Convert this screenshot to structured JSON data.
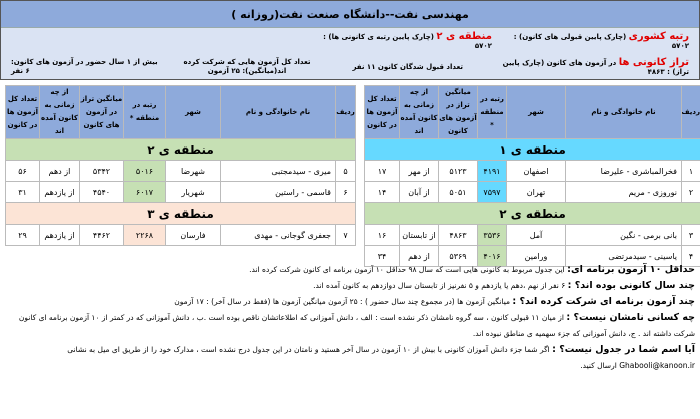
{
  "header": {
    "title": "مهندسی نفت--دانشگاه صنعت نفت(روزانه )",
    "national_rank": {
      "label": "رتبه کشوری",
      "text": " (چارک پایین قبولی های کانون) : ۵۷۰۲"
    },
    "region_rank": {
      "label": "منطقه ی ۲",
      "text": " (چارک پایین رتبه ی کانونی ها) : ۵۷۰۲"
    },
    "taraz": {
      "label": "تراز کانونی ها",
      "text": " در آزمون های کانون (چارک پایین تراز) : ۴۸۶۳"
    },
    "accepted": "تعداد قبول شدگان کانون ۱۱ نفر",
    "exams": "تعداد کل آزمون هایی که شرکت کرده اند(میانگین): ۲۵ آزمون",
    "years": "بیش از ۱ سال حضور در آزمون های کانون: ۶ نفر"
  },
  "columns": [
    "ردیف",
    "نام خانوادگی و نام",
    "شهر",
    "رتبه در منطقه *",
    "میانگین تراز در آزمون های کانون",
    "از چه زمانی به کانون آمده اند",
    "تعداد کل آزمون ها در کانون"
  ],
  "colors": {
    "header": "#8eaadb",
    "zone1": "#66d9ff",
    "zone2": "#c6e0b4",
    "zone3": "#fce4d6",
    "accent": "#e00000"
  },
  "right_table": {
    "zones": [
      {
        "label": "منطقه ی ۱",
        "rows": [
          [
            "۱",
            "فخرالمباشری - علیرضا",
            "اصفهان",
            "۴۱۹۱",
            "۵۱۲۳",
            "از مهر",
            "۱۷"
          ],
          [
            "۲",
            "نوروزی - مریم",
            "تهران",
            "۷۵۹۷",
            "۵۰۵۱",
            "از آبان",
            "۱۴"
          ]
        ]
      },
      {
        "label": "منطقه ی ۲",
        "rows": [
          [
            "۳",
            "بانی برمی - نگین",
            "آمل",
            "۳۵۳۶",
            "۴۸۶۳",
            "از تابستان",
            "۱۶"
          ],
          [
            "۴",
            "یاسینی - سیدمرتضی",
            "ورامین",
            "۴۰۱۶",
            "۵۳۶۹",
            "از دهم",
            "۳۴"
          ]
        ]
      }
    ]
  },
  "left_table": {
    "zones": [
      {
        "label": "منطقه ی ۲",
        "rows": [
          [
            "۵",
            "میری - سیدمجتبی",
            "شهرضا",
            "۵۰۱۶",
            "۵۳۴۲",
            "از دهم",
            "۵۶"
          ],
          [
            "۶",
            "قاسمی - راستین",
            "شهریار",
            "۶۰۱۷",
            "۴۵۴۰",
            "از یازدهم",
            "۳۱"
          ]
        ]
      },
      {
        "label": "منطقه ی ۳",
        "rows": [
          [
            "۷",
            "جعفری گوجانی - مهدی",
            "فارسان",
            "۲۲۶۸",
            "۴۴۶۲",
            "از یازدهم",
            "۲۹"
          ]
        ]
      }
    ]
  },
  "notes": [
    {
      "q": "حداقل ۱۰ آزمون برنامه ای:",
      "a": " این جدول مربوط به کانونی هایی است که سال ۹۸ حداقل ۱۰ آزمون برنامه ای کانون شرکت کرده اند."
    },
    {
      "q": "چند سال کانونی بوده اند؟ :",
      "a": " ۶ نفر از نهم ،دهم یا یازدهم و ۵ نفرنیز از تابستان سال دوازدهم به کانون آمده اند."
    },
    {
      "q": "چند آزمون برنامه ای شرکت کرده اند؟ :",
      "a": " میانگین آزمون ها (در مجموع چند سال حضور ) : ۲۵ آزمون      میانگین آزمون ها (فقط در سال آخر) : ۱۷ آزمون"
    },
    {
      "q": "چه کسانی نامشان نیست؟ :",
      "a": " از میان ۱۱ قبولی کانون ، سه گروه نامشان ذکر نشده است : الف ، دانش آموزانی که اطلاعاتشان ناقص بوده است .ب ، دانش آموزانی که در کمتر از ۱۰ آزمون برنامه ای کانون شرکت داشته اند . ج، دانش آموزانی که جزء سهمیه ی مناطق نبوده اند."
    },
    {
      "q": "آیا اسم شما در جدول نیست؟ :",
      "a": " اگر شما جزء دانش آموزان کانونی با بیش از ۱۰ آزمون در سال آخر هستید و نامتان در این جدول درج نشده است ، مدارک خود را از طریق ای میل به نشانی Ghabooli@kanoon.ir ارسال کنید."
    }
  ]
}
